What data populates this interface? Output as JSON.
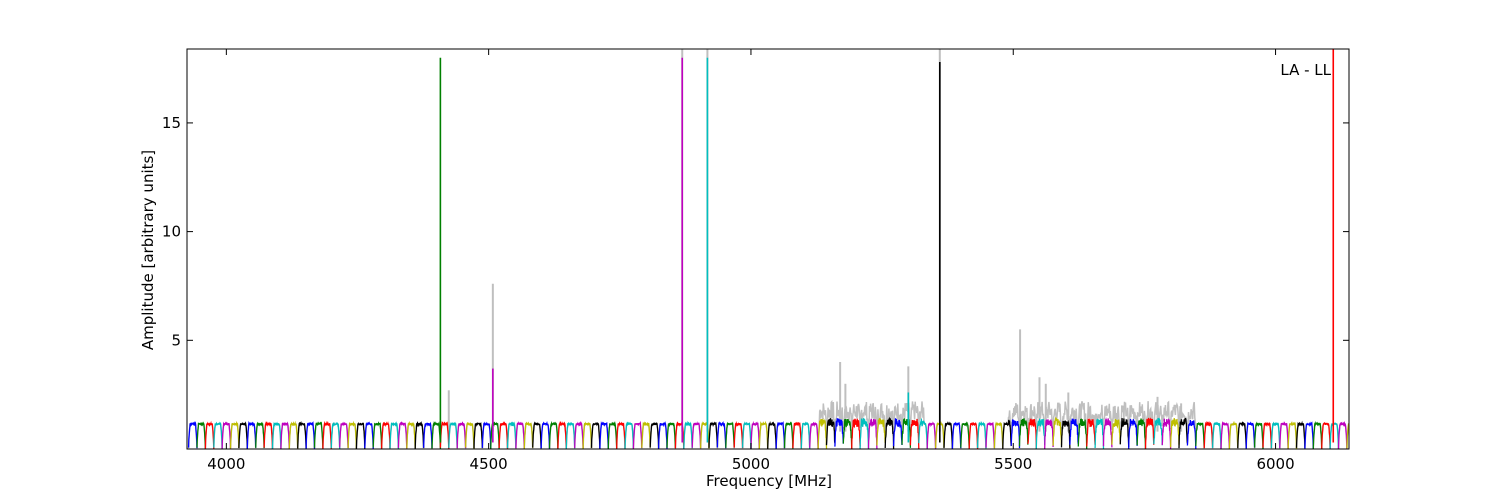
{
  "chart_data": {
    "type": "line",
    "annotation": "LA - LL",
    "xlabel": "Frequency [MHz]",
    "ylabel": "Amplitude [arbitrary units]",
    "xlim": [
      3925,
      6140
    ],
    "ylim": [
      0,
      18.4
    ],
    "x_ticks": [
      4000,
      4500,
      5000,
      5500,
      6000
    ],
    "y_ticks": [
      5,
      10,
      15
    ],
    "grid": false,
    "channel_width_mhz": 16,
    "channel_start_mhz": 3928,
    "channel_color_cycle": [
      "#0000ff",
      "#008000",
      "#ff0000",
      "#00bfbf",
      "#bf00bf",
      "#bfbf00",
      "#000000"
    ],
    "raw_series": {
      "color": "#bfbfbf",
      "spikes": [
        {
          "x": 4508,
          "y": 7.6
        },
        {
          "x": 5170,
          "y": 4.0
        },
        {
          "x": 5180,
          "y": 3.0
        },
        {
          "x": 5300,
          "y": 3.8
        },
        {
          "x": 5513,
          "y": 5.5
        },
        {
          "x": 5550,
          "y": 3.3
        },
        {
          "x": 5562,
          "y": 3.0
        },
        {
          "x": 5605,
          "y": 2.6
        },
        {
          "x": 5775,
          "y": 2.4
        },
        {
          "x": 5820,
          "y": 2.1
        },
        {
          "x": 4424,
          "y": 2.7
        },
        {
          "x": 4869,
          "y": 18.4
        },
        {
          "x": 4917,
          "y": 18.4
        },
        {
          "x": 5360,
          "y": 18.4
        }
      ]
    },
    "cleaned_spikes": [
      {
        "x": 4408,
        "y": 18.0,
        "color": "#008000"
      },
      {
        "x": 4508,
        "y": 3.7,
        "color": "#bf00bf"
      },
      {
        "x": 4869,
        "y": 18.0,
        "color": "#bf00bf"
      },
      {
        "x": 4917,
        "y": 18.0,
        "color": "#00bfbf"
      },
      {
        "x": 5300,
        "y": 2.6,
        "color": "#00bfbf"
      },
      {
        "x": 5360,
        "y": 17.8,
        "color": "#000000"
      },
      {
        "x": 6110,
        "y": 18.4,
        "color": "#ff0000"
      }
    ]
  }
}
